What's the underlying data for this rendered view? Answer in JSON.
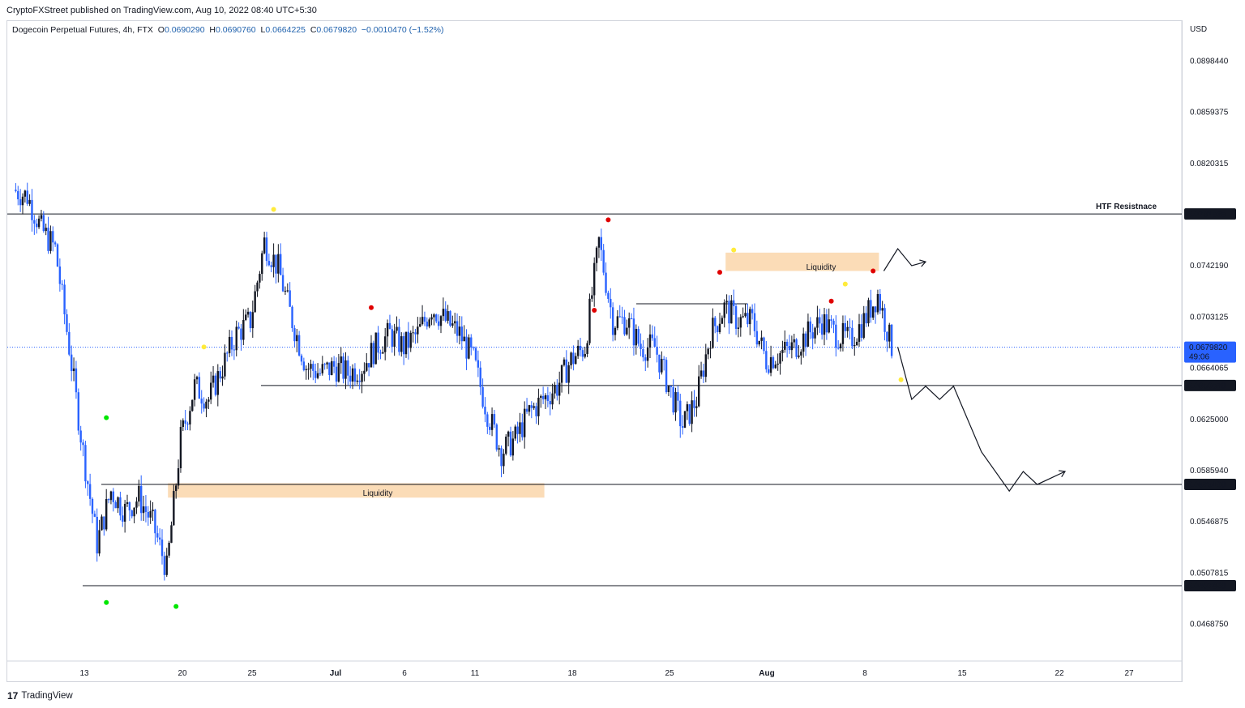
{
  "header": {
    "publish_line": "CryptoFXStreet published on TradingView.com, Aug 10, 2022 08:40 UTC+5:30"
  },
  "legend": {
    "symbol": "Dogecoin Perpetual Futures, 4h, FTX",
    "open_label": "O",
    "open": "0.0690290",
    "high_label": "H",
    "high": "0.0690760",
    "low_label": "L",
    "low": "0.0664225",
    "close_label": "C",
    "close": "0.0679820",
    "change": "−0.0010470 (−1.52%)"
  },
  "price_scale": {
    "currency": "USD",
    "ticks": [
      "0.0898440",
      "0.0859375",
      "0.0820315",
      "0.0742190",
      "0.0703125",
      "0.0664065",
      "0.0625000",
      "0.0585940",
      "0.0546875",
      "0.0507815",
      "0.0468750"
    ],
    "highlighted_levels": [
      "0.0781535",
      "0.0650570",
      "0.0575100",
      "0.0497820"
    ],
    "current_price": "0.0679820",
    "countdown": "49:06"
  },
  "time_scale": {
    "ticks": [
      "13",
      "20",
      "25",
      "Jul",
      "6",
      "11",
      "18",
      "25",
      "Aug",
      "8",
      "15",
      "22",
      "27"
    ]
  },
  "annotations": {
    "htf_resistance_label": "HTF Resistnace",
    "liquidity_upper_label": "Liquidity",
    "liquidity_lower_label": "Liquidity"
  },
  "brand": {
    "logo_text": "17",
    "name": "TradingView"
  },
  "colors": {
    "up_candle": "#131722",
    "down_candle": "#2962ff",
    "liquidity_zone": "#fbdcb7",
    "resistance_label": "#f23645",
    "current_price": "#2962ff"
  },
  "chart_data": {
    "type": "candlestick",
    "symbol": "Dogecoin Perpetual Futures",
    "timeframe": "4h",
    "exchange": "FTX",
    "y_axis_currency": "USD",
    "ylim": [
      0.0445,
      0.0935
    ],
    "x_ticks": [
      "13",
      "20",
      "25",
      "Jul",
      "6",
      "11",
      "18",
      "25",
      "Aug",
      "8",
      "15",
      "22",
      "27"
    ],
    "horizontal_levels": [
      0.0781535,
      0.065057,
      0.05751,
      0.049782
    ],
    "liquidity_zones": [
      {
        "label": "Liquidity",
        "low": 0.0738,
        "high": 0.0752,
        "from": "Jul 29",
        "to": "Aug 9"
      },
      {
        "label": "Liquidity",
        "low": 0.0565,
        "high": 0.0576,
        "from": "Jun 19",
        "to": "Jul 16"
      }
    ],
    "price_path": [
      [
        "Jun 8",
        0.08
      ],
      [
        "Jun 9",
        0.0795
      ],
      [
        "Jun 10",
        0.077
      ],
      [
        "Jun 11",
        0.0755
      ],
      [
        "Jun 12",
        0.068
      ],
      [
        "Jun 13",
        0.06
      ],
      [
        "Jun 14",
        0.053
      ],
      [
        "Jun 15",
        0.057
      ],
      [
        "Jun 16",
        0.0555
      ],
      [
        "Jun 17",
        0.0565
      ],
      [
        "Jun 18",
        0.0545
      ],
      [
        "Jun 19",
        0.051
      ],
      [
        "Jun 20",
        0.061
      ],
      [
        "Jun 21",
        0.065
      ],
      [
        "Jun 22",
        0.064
      ],
      [
        "Jun 23",
        0.0665
      ],
      [
        "Jun 24",
        0.069
      ],
      [
        "Jun 25",
        0.07
      ],
      [
        "Jun 26",
        0.076
      ],
      [
        "Jun 27",
        0.074
      ],
      [
        "Jun 28",
        0.07
      ],
      [
        "Jun 29",
        0.0665
      ],
      [
        "Jun 30",
        0.066
      ],
      [
        "Jul 1",
        0.0665
      ],
      [
        "Jul 2",
        0.066
      ],
      [
        "Jul 3",
        0.0665
      ],
      [
        "Jul 4",
        0.068
      ],
      [
        "Jul 5",
        0.069
      ],
      [
        "Jul 6",
        0.068
      ],
      [
        "Jul 7",
        0.069
      ],
      [
        "Jul 8",
        0.071
      ],
      [
        "Jul 9",
        0.07
      ],
      [
        "Jul 10",
        0.069
      ],
      [
        "Jul 11",
        0.067
      ],
      [
        "Jul 12",
        0.063
      ],
      [
        "Jul 13",
        0.06
      ],
      [
        "Jul 14",
        0.061
      ],
      [
        "Jul 15",
        0.063
      ],
      [
        "Jul 16",
        0.064
      ],
      [
        "Jul 17",
        0.065
      ],
      [
        "Jul 18",
        0.067
      ],
      [
        "Jul 19",
        0.068
      ],
      [
        "Jul 20",
        0.076
      ],
      [
        "Jul 21",
        0.07
      ],
      [
        "Jul 22",
        0.07
      ],
      [
        "Jul 23",
        0.068
      ],
      [
        "Jul 24",
        0.068
      ],
      [
        "Jul 25",
        0.065
      ],
      [
        "Jul 26",
        0.062
      ],
      [
        "Jul 27",
        0.064
      ],
      [
        "Jul 28",
        0.069
      ],
      [
        "Jul 29",
        0.071
      ],
      [
        "Jul 30",
        0.07
      ],
      [
        "Jul 31",
        0.07
      ],
      [
        "Aug 1",
        0.067
      ],
      [
        "Aug 2",
        0.0675
      ],
      [
        "Aug 3",
        0.068
      ],
      [
        "Aug 4",
        0.069
      ],
      [
        "Aug 5",
        0.07
      ],
      [
        "Aug 6",
        0.069
      ],
      [
        "Aug 7",
        0.0685
      ],
      [
        "Aug 8",
        0.07
      ],
      [
        "Aug 9",
        0.072
      ],
      [
        "Aug 10",
        0.068
      ]
    ],
    "swing_markers": [
      {
        "date": "Jun 14",
        "price": 0.0626,
        "color": "green"
      },
      {
        "date": "Jun 14",
        "price": 0.0485,
        "color": "green"
      },
      {
        "date": "Jun 19",
        "price": 0.0482,
        "color": "green"
      },
      {
        "date": "Jun 26",
        "price": 0.0785,
        "color": "yellow"
      },
      {
        "date": "Jun 21",
        "price": 0.068,
        "color": "yellow"
      },
      {
        "date": "Jul 3",
        "price": 0.071,
        "color": "red"
      },
      {
        "date": "Jul 19",
        "price": 0.0708,
        "color": "red"
      },
      {
        "date": "Jul 20",
        "price": 0.0777,
        "color": "red"
      },
      {
        "date": "Jul 28",
        "price": 0.0737,
        "color": "red"
      },
      {
        "date": "Jul 29",
        "price": 0.0754,
        "color": "yellow"
      },
      {
        "date": "Aug 5",
        "price": 0.0715,
        "color": "red"
      },
      {
        "date": "Aug 6",
        "price": 0.0728,
        "color": "yellow"
      },
      {
        "date": "Aug 8",
        "price": 0.0738,
        "color": "red"
      },
      {
        "date": "Aug 10",
        "price": 0.0655,
        "color": "yellow"
      }
    ],
    "projection_paths": [
      [
        [
          "Aug 9",
          0.0738
        ],
        [
          "Aug 10",
          0.0755
        ],
        [
          "Aug 11",
          0.0742
        ],
        [
          "Aug 12",
          0.0745
        ]
      ],
      [
        [
          "Aug 10",
          0.068
        ],
        [
          "Aug 11",
          0.064
        ],
        [
          "Aug 12",
          0.065
        ],
        [
          "Aug 13",
          0.064
        ],
        [
          "Aug 14",
          0.065
        ],
        [
          "Aug 16",
          0.06
        ],
        [
          "Aug 18",
          0.057
        ],
        [
          "Aug 19",
          0.0585
        ],
        [
          "Aug 20",
          0.0575
        ],
        [
          "Aug 21",
          0.058
        ],
        [
          "Aug 22",
          0.0585
        ]
      ]
    ]
  }
}
